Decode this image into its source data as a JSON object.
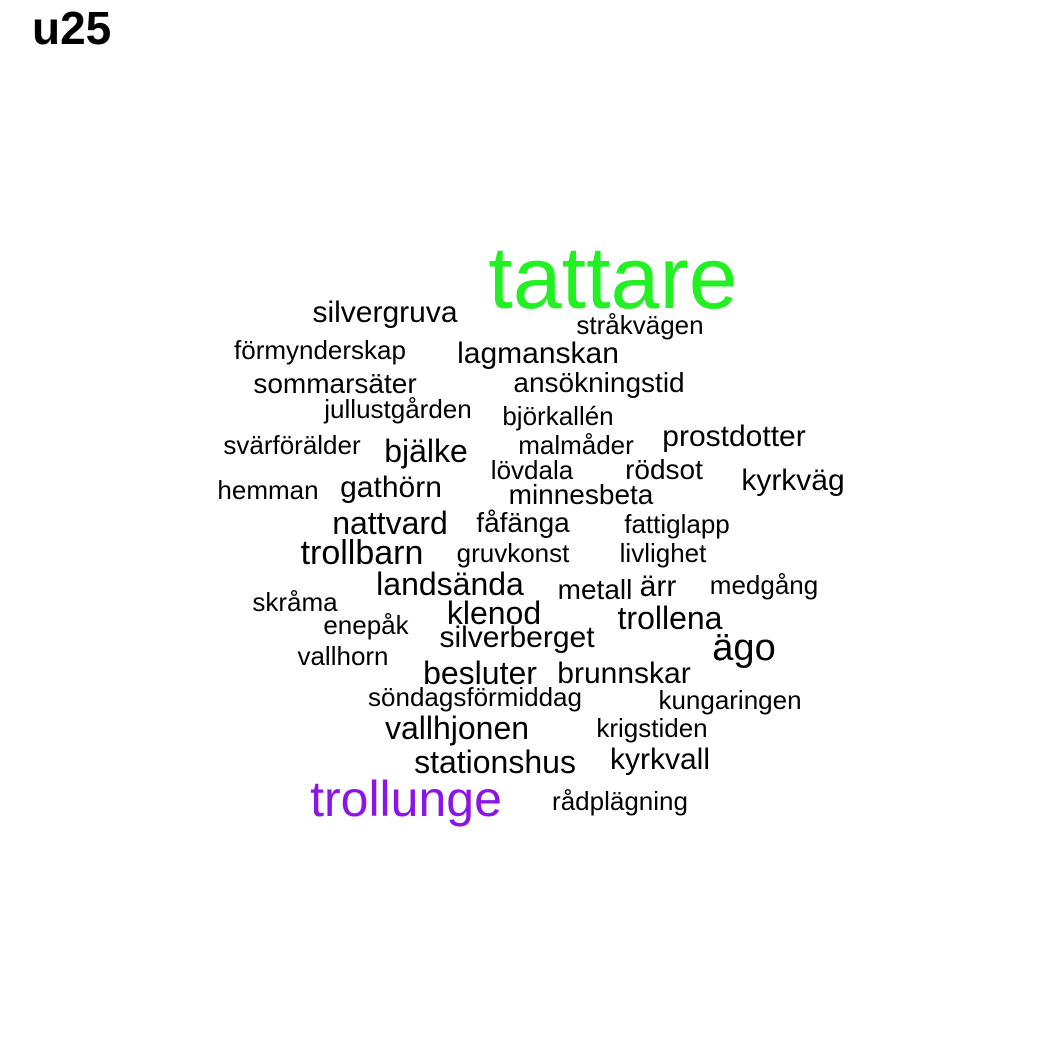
{
  "title": "u25",
  "colors": {
    "default": "#000000",
    "highlight_green": "#22f022",
    "highlight_purple": "#8b14e6"
  },
  "words": [
    {
      "text": "tattare",
      "color": "highlight_green"
    },
    {
      "text": "silvergruva"
    },
    {
      "text": "stråkvägen"
    },
    {
      "text": "förmynderskap"
    },
    {
      "text": "lagmanskan"
    },
    {
      "text": "sommarsäter"
    },
    {
      "text": "ansökningstid"
    },
    {
      "text": "jullustgården"
    },
    {
      "text": "björkallén"
    },
    {
      "text": "svärförälder"
    },
    {
      "text": "bjälke"
    },
    {
      "text": "malmåder"
    },
    {
      "text": "prostdotter"
    },
    {
      "text": "lövdala"
    },
    {
      "text": "rödsot"
    },
    {
      "text": "kyrkväg"
    },
    {
      "text": "hemman"
    },
    {
      "text": "gathörn"
    },
    {
      "text": "minnesbeta"
    },
    {
      "text": "nattvard"
    },
    {
      "text": "fåfänga"
    },
    {
      "text": "fattiglapp"
    },
    {
      "text": "trollbarn"
    },
    {
      "text": "gruvkonst"
    },
    {
      "text": "livlighet"
    },
    {
      "text": "landsända"
    },
    {
      "text": "metall"
    },
    {
      "text": "ärr"
    },
    {
      "text": "medgång"
    },
    {
      "text": "skråma"
    },
    {
      "text": "klenod"
    },
    {
      "text": "trollena"
    },
    {
      "text": "enepåk"
    },
    {
      "text": "silverberget"
    },
    {
      "text": "ägo"
    },
    {
      "text": "vallhorn"
    },
    {
      "text": "besluter"
    },
    {
      "text": "brunnskar"
    },
    {
      "text": "söndagsförmiddag"
    },
    {
      "text": "kungaringen"
    },
    {
      "text": "vallhjonen"
    },
    {
      "text": "krigstiden"
    },
    {
      "text": "stationshus"
    },
    {
      "text": "kyrkvall"
    },
    {
      "text": "trollunge",
      "color": "highlight_purple"
    },
    {
      "text": "rådplägning"
    }
  ]
}
